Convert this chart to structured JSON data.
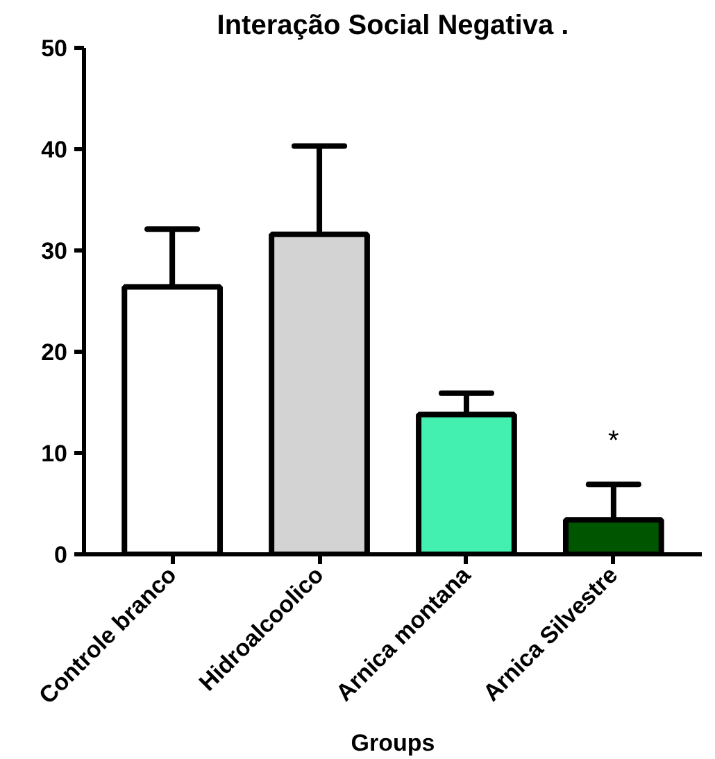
{
  "chart_data": {
    "type": "bar",
    "title": "Interação Social Negativa .",
    "xlabel": "Groups",
    "categories": [
      "Controle branco",
      "Hidroalcoolico",
      "Arnica montana",
      "Arnica Silvestre"
    ],
    "values": [
      26.4,
      31.6,
      13.8,
      3.4
    ],
    "colors": [
      "#ffffff",
      "#d3d3d3",
      "#44f0b0",
      "#005500"
    ],
    "errors": [
      [
        26.4,
        32.1
      ],
      [
        31.6,
        40.3
      ],
      [
        13.8,
        15.9
      ],
      [
        3.4,
        6.9
      ]
    ],
    "annotations": [
      "*"
    ],
    "ylim": [
      0,
      50
    ],
    "yticks": [
      0,
      10,
      20,
      30,
      40,
      50
    ],
    "grid": false
  }
}
